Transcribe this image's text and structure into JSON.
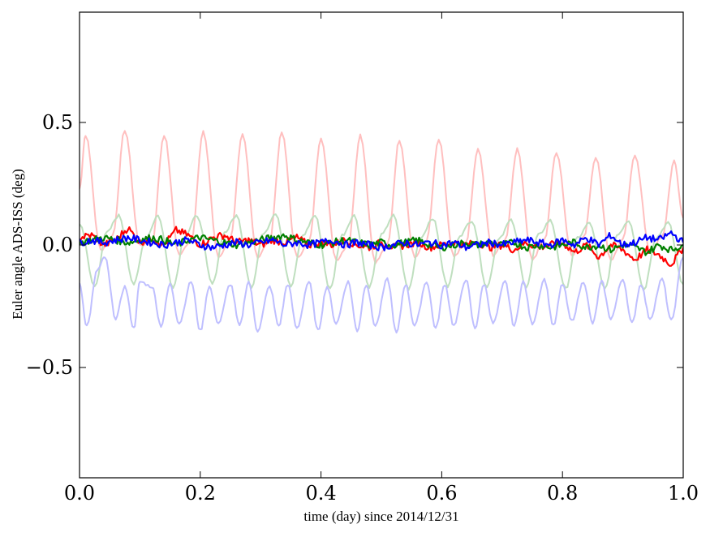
{
  "chart_data": {
    "type": "line",
    "title": "",
    "xlabel": "time (day) since 2014/12/31",
    "ylabel": "Euler angle ADS-ISS (deg)",
    "xlim": [
      0.0,
      1.0
    ],
    "ylim": [
      -0.95,
      0.95
    ],
    "x_ticks": [
      0.0,
      0.2,
      0.4,
      0.6,
      0.8,
      1.0
    ],
    "x_tick_labels": [
      "0.0",
      "0.2",
      "0.4",
      "0.6",
      "0.8",
      "1.0"
    ],
    "y_ticks": [
      -0.5,
      0.0,
      0.5
    ],
    "y_tick_labels": [
      "−0.5",
      "0.0",
      "0.5"
    ],
    "grid": false,
    "legend": "none",
    "series": [
      {
        "color": "#ffbfbf",
        "x": [
          0.0,
          0.01,
          0.035,
          0.055,
          0.075,
          0.1,
          0.12,
          0.14,
          0.165,
          0.185,
          0.205,
          0.23,
          0.25,
          0.27,
          0.295,
          0.315,
          0.335,
          0.36,
          0.38,
          0.4,
          0.425,
          0.445,
          0.465,
          0.49,
          0.51,
          0.53,
          0.555,
          0.575,
          0.595,
          0.62,
          0.64,
          0.66,
          0.685,
          0.705,
          0.725,
          0.75,
          0.77,
          0.79,
          0.815,
          0.835,
          0.855,
          0.88,
          0.9,
          0.92,
          0.945,
          0.965,
          0.985,
          1.0
        ],
        "y": [
          0.23,
          0.45,
          -0.02,
          0.04,
          0.47,
          0.0,
          0.01,
          0.45,
          -0.04,
          0.02,
          0.46,
          -0.05,
          0.03,
          0.45,
          -0.05,
          0.02,
          0.46,
          -0.05,
          0.01,
          0.44,
          -0.06,
          0.0,
          0.45,
          -0.07,
          0.0,
          0.43,
          -0.05,
          0.02,
          0.43,
          -0.05,
          0.01,
          0.39,
          -0.04,
          0.02,
          0.39,
          -0.06,
          0.02,
          0.38,
          -0.04,
          0.03,
          0.36,
          -0.06,
          0.02,
          0.37,
          -0.03,
          0.03,
          0.34,
          0.11
        ]
      },
      {
        "color": "#bfdfbf",
        "x": [
          0.0,
          0.025,
          0.045,
          0.065,
          0.09,
          0.11,
          0.13,
          0.155,
          0.175,
          0.195,
          0.22,
          0.24,
          0.26,
          0.285,
          0.305,
          0.325,
          0.35,
          0.37,
          0.39,
          0.415,
          0.435,
          0.455,
          0.48,
          0.5,
          0.52,
          0.545,
          0.565,
          0.585,
          0.61,
          0.63,
          0.65,
          0.675,
          0.695,
          0.715,
          0.74,
          0.76,
          0.78,
          0.805,
          0.825,
          0.845,
          0.87,
          0.89,
          0.91,
          0.935,
          0.955,
          0.975,
          1.0
        ],
        "y": [
          0.09,
          -0.17,
          0.05,
          0.12,
          -0.16,
          0.03,
          0.12,
          -0.17,
          0.04,
          0.12,
          -0.16,
          0.05,
          0.12,
          -0.17,
          0.05,
          0.13,
          -0.17,
          0.04,
          0.12,
          -0.18,
          0.04,
          0.12,
          -0.17,
          0.04,
          0.12,
          -0.18,
          0.03,
          0.11,
          -0.17,
          0.04,
          0.1,
          -0.17,
          0.03,
          0.1,
          -0.17,
          0.04,
          0.1,
          -0.18,
          0.03,
          0.09,
          -0.18,
          0.04,
          0.1,
          -0.18,
          0.03,
          0.09,
          -0.16
        ]
      },
      {
        "color": "#bfbfff",
        "x": [
          0.0,
          0.012,
          0.03,
          0.042,
          0.06,
          0.075,
          0.09,
          0.1,
          0.12,
          0.135,
          0.15,
          0.165,
          0.185,
          0.2,
          0.215,
          0.23,
          0.25,
          0.265,
          0.28,
          0.295,
          0.315,
          0.33,
          0.345,
          0.36,
          0.38,
          0.395,
          0.41,
          0.425,
          0.445,
          0.46,
          0.475,
          0.49,
          0.51,
          0.525,
          0.54,
          0.555,
          0.575,
          0.59,
          0.605,
          0.62,
          0.64,
          0.655,
          0.67,
          0.685,
          0.705,
          0.72,
          0.735,
          0.75,
          0.77,
          0.785,
          0.8,
          0.815,
          0.835,
          0.85,
          0.865,
          0.88,
          0.9,
          0.915,
          0.93,
          0.945,
          0.965,
          0.98,
          1.0
        ],
        "y": [
          -0.16,
          -0.33,
          -0.1,
          -0.05,
          -0.3,
          -0.17,
          -0.34,
          -0.15,
          -0.17,
          -0.33,
          -0.16,
          -0.32,
          -0.15,
          -0.35,
          -0.17,
          -0.32,
          -0.16,
          -0.33,
          -0.15,
          -0.35,
          -0.17,
          -0.33,
          -0.16,
          -0.34,
          -0.15,
          -0.35,
          -0.17,
          -0.32,
          -0.15,
          -0.35,
          -0.16,
          -0.33,
          -0.14,
          -0.36,
          -0.16,
          -0.33,
          -0.15,
          -0.34,
          -0.16,
          -0.33,
          -0.14,
          -0.34,
          -0.16,
          -0.32,
          -0.15,
          -0.33,
          -0.15,
          -0.32,
          -0.14,
          -0.33,
          -0.16,
          -0.31,
          -0.15,
          -0.32,
          -0.15,
          -0.3,
          -0.14,
          -0.32,
          -0.16,
          -0.3,
          -0.14,
          -0.31,
          -0.05
        ]
      },
      {
        "color": "#ff0000",
        "x": [
          0.0,
          0.02,
          0.04,
          0.06,
          0.08,
          0.1,
          0.12,
          0.14,
          0.16,
          0.18,
          0.2,
          0.22,
          0.24,
          0.26,
          0.28,
          0.3,
          0.32,
          0.34,
          0.36,
          0.38,
          0.4,
          0.42,
          0.44,
          0.46,
          0.48,
          0.5,
          0.52,
          0.54,
          0.56,
          0.58,
          0.6,
          0.62,
          0.64,
          0.66,
          0.68,
          0.7,
          0.72,
          0.74,
          0.76,
          0.78,
          0.8,
          0.82,
          0.84,
          0.86,
          0.88,
          0.9,
          0.92,
          0.94,
          0.96,
          0.98,
          1.0
        ],
        "y": [
          0.03,
          0.04,
          0.0,
          0.02,
          0.07,
          0.01,
          0.03,
          0.0,
          0.06,
          0.04,
          0.0,
          0.03,
          0.04,
          0.01,
          0.02,
          0.0,
          0.02,
          0.01,
          0.03,
          0.0,
          0.01,
          0.0,
          0.02,
          0.0,
          -0.01,
          0.01,
          -0.01,
          0.0,
          0.01,
          -0.01,
          0.0,
          0.01,
          0.0,
          0.01,
          -0.01,
          0.0,
          -0.02,
          0.01,
          -0.01,
          0.0,
          0.01,
          -0.03,
          0.0,
          -0.05,
          0.0,
          -0.02,
          -0.06,
          -0.02,
          -0.04,
          -0.08,
          -0.01
        ]
      },
      {
        "color": "#008000",
        "x": [
          0.0,
          0.02,
          0.04,
          0.06,
          0.08,
          0.1,
          0.12,
          0.14,
          0.16,
          0.18,
          0.2,
          0.22,
          0.24,
          0.26,
          0.28,
          0.3,
          0.32,
          0.34,
          0.36,
          0.38,
          0.4,
          0.42,
          0.44,
          0.46,
          0.48,
          0.5,
          0.52,
          0.54,
          0.56,
          0.58,
          0.6,
          0.62,
          0.64,
          0.66,
          0.68,
          0.7,
          0.72,
          0.74,
          0.76,
          0.78,
          0.8,
          0.82,
          0.84,
          0.86,
          0.88,
          0.9,
          0.92,
          0.94,
          0.96,
          0.98,
          1.0
        ],
        "y": [
          0.01,
          0.02,
          0.03,
          0.02,
          0.01,
          0.02,
          0.03,
          0.02,
          0.0,
          0.02,
          0.03,
          0.02,
          0.01,
          0.0,
          0.01,
          0.02,
          0.03,
          0.04,
          0.02,
          0.01,
          0.0,
          0.01,
          0.02,
          0.01,
          0.0,
          0.01,
          0.0,
          0.01,
          0.02,
          0.0,
          -0.01,
          0.0,
          0.01,
          0.0,
          0.01,
          0.0,
          0.01,
          -0.01,
          0.0,
          -0.01,
          0.0,
          0.01,
          -0.01,
          0.0,
          -0.02,
          0.0,
          -0.01,
          -0.03,
          0.0,
          -0.02,
          0.0
        ]
      },
      {
        "color": "#0000ff",
        "x": [
          0.0,
          0.02,
          0.04,
          0.06,
          0.08,
          0.1,
          0.12,
          0.14,
          0.16,
          0.18,
          0.2,
          0.22,
          0.24,
          0.26,
          0.28,
          0.3,
          0.32,
          0.34,
          0.36,
          0.38,
          0.4,
          0.42,
          0.44,
          0.46,
          0.48,
          0.5,
          0.52,
          0.54,
          0.56,
          0.58,
          0.6,
          0.62,
          0.64,
          0.66,
          0.68,
          0.7,
          0.72,
          0.74,
          0.76,
          0.78,
          0.8,
          0.82,
          0.84,
          0.86,
          0.88,
          0.9,
          0.92,
          0.94,
          0.96,
          0.98,
          1.0
        ],
        "y": [
          0.01,
          0.02,
          0.01,
          0.02,
          0.03,
          0.02,
          0.01,
          0.0,
          0.01,
          0.02,
          0.0,
          -0.01,
          0.0,
          0.01,
          0.0,
          0.01,
          0.02,
          0.0,
          0.01,
          0.0,
          0.01,
          0.02,
          0.0,
          0.01,
          0.0,
          -0.01,
          0.0,
          0.01,
          0.0,
          0.01,
          0.0,
          0.01,
          -0.01,
          0.0,
          0.01,
          0.0,
          0.01,
          0.02,
          0.01,
          0.0,
          0.02,
          0.0,
          0.03,
          0.0,
          0.04,
          0.0,
          0.01,
          0.03,
          0.02,
          0.05,
          0.01
        ]
      }
    ]
  }
}
